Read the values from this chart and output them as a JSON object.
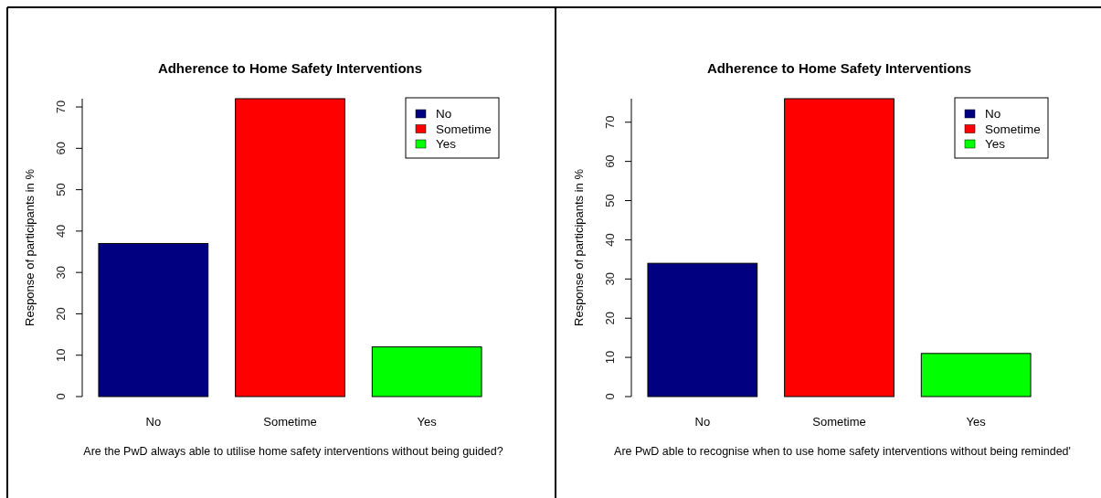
{
  "chart_data": [
    {
      "type": "bar",
      "title": "Adherence to Home Safety Interventions",
      "xlabel": "Are the PwD always able to utilise home safety interventions without being guided?",
      "ylabel": "Response of participants in %",
      "categories": [
        "No",
        "Sometime",
        "Yes"
      ],
      "series": [
        {
          "name": "No",
          "color": "#000080",
          "values": [
            37,
            null,
            null
          ]
        },
        {
          "name": "Sometime",
          "color": "#ff0000",
          "values": [
            null,
            72,
            null
          ]
        },
        {
          "name": "Yes",
          "color": "#00ff00",
          "values": [
            null,
            null,
            12
          ]
        }
      ],
      "ylim": [
        0,
        72
      ],
      "yticks": [
        0,
        10,
        20,
        30,
        40,
        50,
        60,
        70
      ],
      "legend": "top right"
    },
    {
      "type": "bar",
      "title": "Adherence to Home Safety Interventions",
      "xlabel": "Are PwD able to recognise when to use home safety interventions without being reminded'",
      "ylabel": "Response of participants in %",
      "categories": [
        "No",
        "Sometime",
        "Yes"
      ],
      "series": [
        {
          "name": "No",
          "color": "#000080",
          "values": [
            34,
            null,
            null
          ]
        },
        {
          "name": "Sometime",
          "color": "#ff0000",
          "values": [
            null,
            76,
            null
          ]
        },
        {
          "name": "Yes",
          "color": "#00ff00",
          "values": [
            null,
            null,
            11
          ]
        }
      ],
      "ylim": [
        0,
        76
      ],
      "yticks": [
        0,
        10,
        20,
        30,
        40,
        50,
        60,
        70
      ],
      "legend": "top right"
    }
  ]
}
